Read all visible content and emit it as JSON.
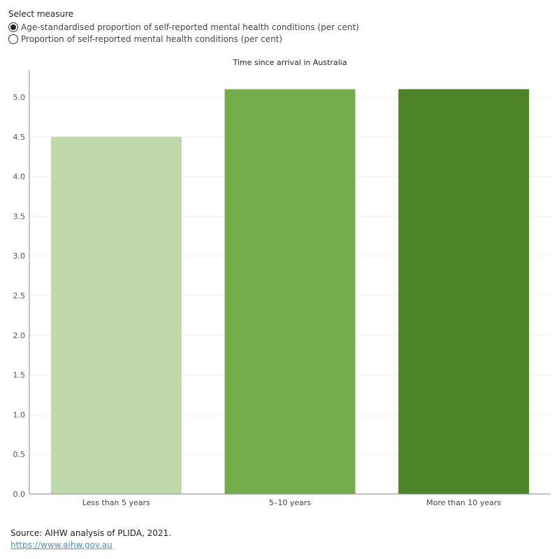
{
  "selector": {
    "title": "Select measure",
    "options": [
      {
        "label": "Age-standardised proportion of self-reported mental health conditions (per cent)",
        "selected": true
      },
      {
        "label": "Proportion of self-reported mental health conditions (per cent)",
        "selected": false
      }
    ]
  },
  "chart_data": {
    "type": "bar",
    "title": "Time since arrival in Australia",
    "categories": [
      "Less than 5 years",
      "5–10 years",
      "More than 10 years"
    ],
    "values": [
      4.5,
      5.1,
      5.1
    ],
    "colors": [
      "#bfd9aa",
      "#75ad4a",
      "#4d8427"
    ],
    "ylim": [
      0,
      5.0
    ],
    "yticks": [
      "0.0",
      "0.5",
      "1.0",
      "1.5",
      "2.0",
      "2.5",
      "3.0",
      "3.5",
      "4.0",
      "4.5",
      "5.0"
    ],
    "grid": true
  },
  "footer": {
    "source": "Source: AIHW analysis of PLIDA, 2021.",
    "link": "https://www.aihw.gov.au"
  }
}
